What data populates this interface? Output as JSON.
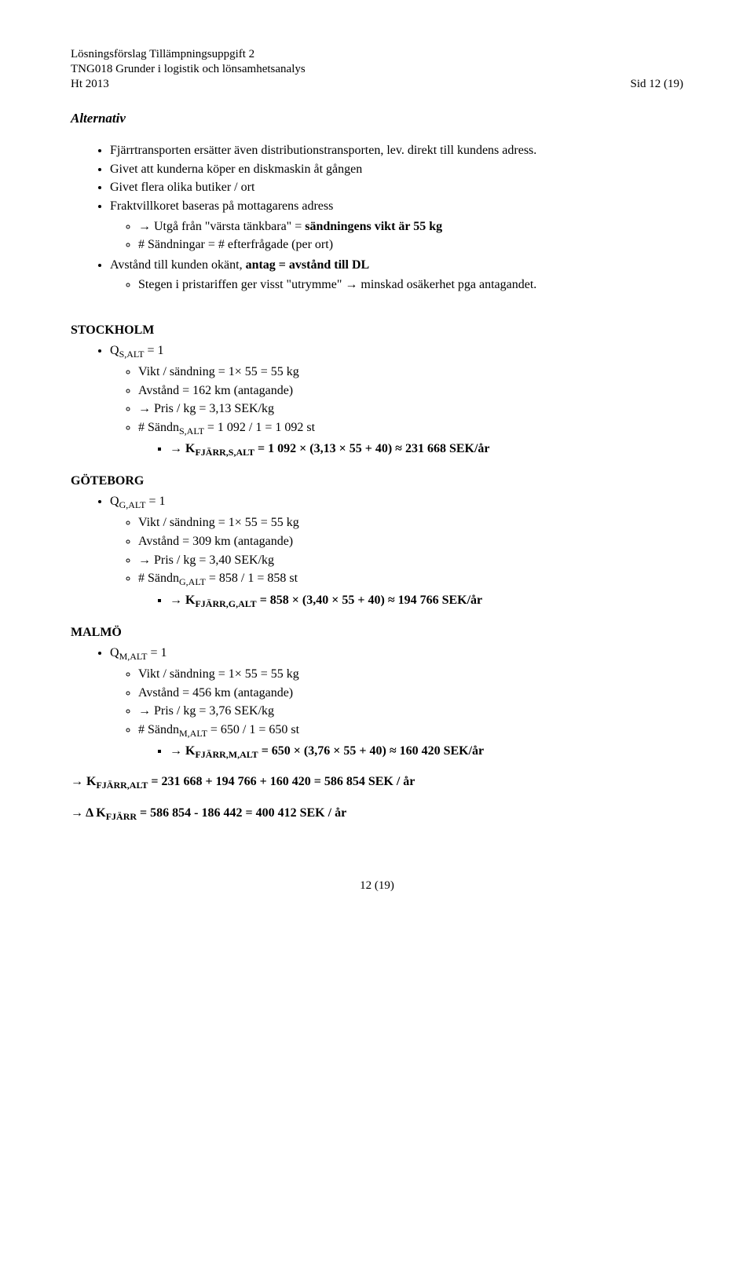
{
  "header": {
    "line1": "Lösningsförslag Tillämpningsuppgift 2",
    "line2": "TNG018 Grunder i logistik och lönsamhetsanalys",
    "line3_left": "Ht 2013",
    "line3_right": "Sid 12 (19)"
  },
  "alt_title": "Alternativ",
  "top_bullets": {
    "b1": "Fjärrtransporten ersätter även distributionstransporten, lev. direkt till kundens adress.",
    "b2": "Givet att kunderna köper en diskmaskin åt gången",
    "b3": "Givet flera olika butiker / ort",
    "b4": "Fraktvillkoret baseras på mottagarens adress",
    "b4_o1": "→ Utgå från \"värsta tänkbara\" = sändningens vikt är 55 kg",
    "b4_o2": "# Sändningar = # efterfrågade (per ort)",
    "b5_pre": "Avstånd till kunden okänt, ",
    "b5_bold": "antag = avstånd till DL",
    "b5_o1": "Stegen i pristariffen ger visst \"utrymme\" → minskad osäkerhet pga antagandet."
  },
  "stockholm": {
    "title": "STOCKHOLM",
    "q_pre": "Q",
    "q_sub": "S,ALT",
    "q_post": " = 1",
    "o1": "Vikt / sändning = 1× 55 = 55 kg",
    "o2": "Avstånd = 162 km (antagande)",
    "o3": "→ Pris / kg = 3,13 SEK/kg",
    "o4_pre": "# Sändn",
    "o4_sub": "S,ALT",
    "o4_post": " = 1 092 / 1 = 1 092 st",
    "sq_pre": "→ K",
    "sq_sub": "FJÄRR,S,ALT",
    "sq_post": " = 1 092 × (3,13  × 55 + 40) ≈ 231 668 SEK/år"
  },
  "goteborg": {
    "title": "GÖTEBORG",
    "q_pre": "Q",
    "q_sub": "G,ALT",
    "q_post": " = 1",
    "o1": "Vikt / sändning = 1× 55 = 55 kg",
    "o2": "Avstånd = 309 km (antagande)",
    "o3": "→ Pris / kg = 3,40 SEK/kg",
    "o4_pre": "# Sändn",
    "o4_sub": "G,ALT",
    "o4_post": " = 858 / 1 = 858 st",
    "sq_pre": "→ K",
    "sq_sub": "FJÄRR,G,ALT",
    "sq_post": " = 858 × (3,40 × 55 + 40) ≈ 194 766 SEK/år"
  },
  "malmo": {
    "title": "MALMÖ",
    "q_pre": "Q",
    "q_sub": "M,ALT",
    "q_post": " = 1",
    "o1": "Vikt / sändning = 1× 55 = 55 kg",
    "o2": "Avstånd = 456 km (antagande)",
    "o3": "→ Pris / kg = 3,76 SEK/kg",
    "o4_pre": "# Sändn",
    "o4_sub": "M,ALT",
    "o4_post": " = 650 / 1 = 650 st",
    "sq_pre": "→ K",
    "sq_sub": "FJÄRR,M,ALT",
    "sq_post": " = 650 × (3,76 × 55 + 40) ≈ 160 420 SEK/år"
  },
  "eq1_pre": "→ K",
  "eq1_sub": "FJÄRR,ALT",
  "eq1_post": " = 231 668 + 194 766 + 160 420 = 586 854 SEK / år",
  "eq2_pre": "→ Δ K",
  "eq2_sub": "FJÄRR",
  "eq2_post": " = 586 854 - 186 442 = 400 412 SEK / år",
  "footer": "12 (19)"
}
